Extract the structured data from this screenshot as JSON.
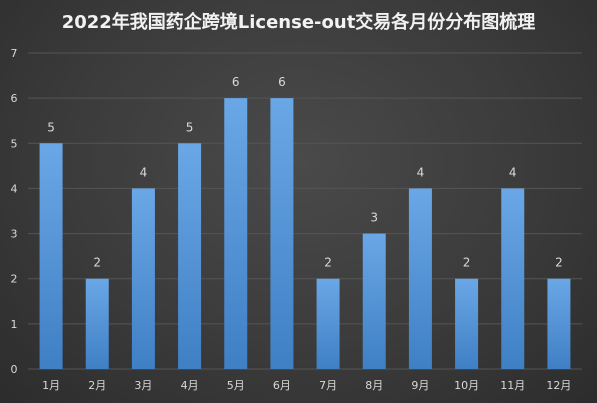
{
  "chart_data": {
    "type": "bar",
    "title": "2022年我国药企跨境License-out交易各月份分布图梳理",
    "categories": [
      "1月",
      "2月",
      "3月",
      "4月",
      "5月",
      "6月",
      "7月",
      "8月",
      "9月",
      "10月",
      "11月",
      "12月"
    ],
    "values": [
      5,
      2,
      4,
      5,
      6,
      6,
      2,
      3,
      4,
      2,
      4,
      2
    ],
    "ylim": [
      0,
      7
    ],
    "yticks": [
      0,
      1,
      2,
      3,
      4,
      5,
      6,
      7
    ],
    "grid": true,
    "data_labels": true,
    "xlabel": "",
    "ylabel": "",
    "colors": {
      "bar_top": "#6aa7e6",
      "bar_bottom": "#3f7fc4",
      "grid": "#555555",
      "text": "#d9d9d9",
      "title": "#f2f2f2"
    }
  }
}
